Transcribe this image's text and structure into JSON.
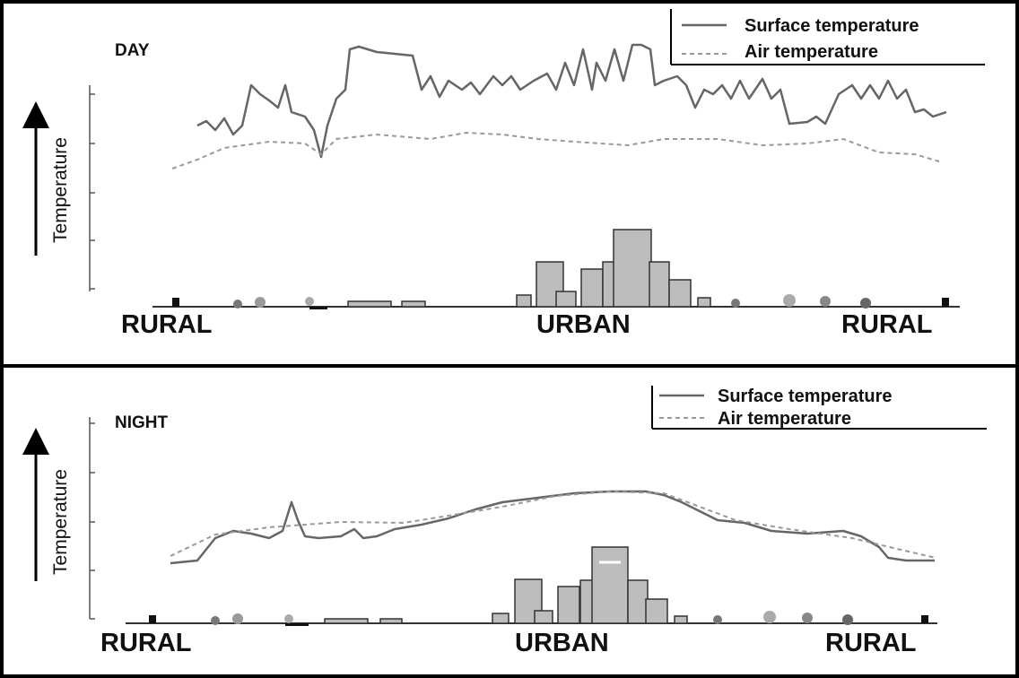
{
  "panels": [
    {
      "title": "DAY",
      "y_axis": "Temperature",
      "legend": [
        "Surface temperature",
        "Air temperature"
      ],
      "x_labels": [
        "RURAL",
        "URBAN",
        "RURAL"
      ]
    },
    {
      "title": "NIGHT",
      "y_axis": "Temperature",
      "legend": [
        "Surface temperature",
        "Air temperature"
      ],
      "x_labels": [
        "RURAL",
        "URBAN",
        "RURAL"
      ]
    }
  ]
}
